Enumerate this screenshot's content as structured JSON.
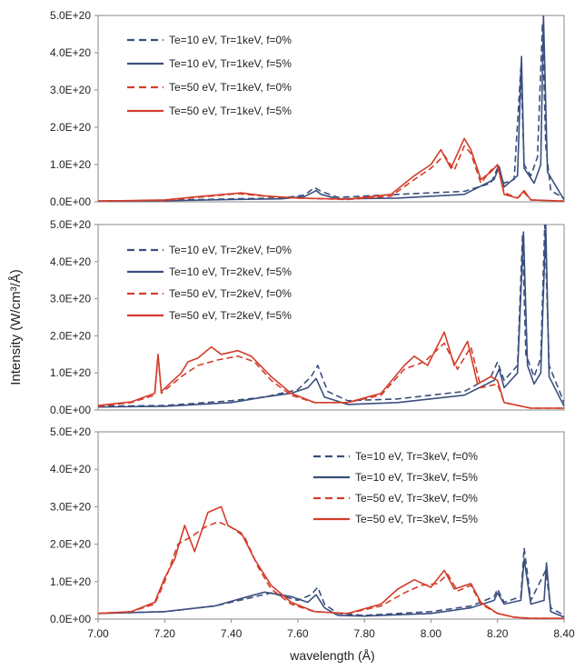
{
  "figure": {
    "ylabel": "Intensity  (W/cm³/Å)",
    "xlabel": "wavelength (Å)"
  },
  "chart_data": [
    {
      "type": "line",
      "xlabel": "",
      "ylabel": "",
      "xlim": [
        7.0,
        8.4
      ],
      "ylim": [
        0,
        5e+20
      ],
      "yticks": [
        "0.0E+00",
        "1.0E+20",
        "2.0E+20",
        "3.0E+20",
        "4.0E+20",
        "5.0E+20"
      ],
      "xticks": [],
      "grid": false,
      "legend_position": "top-left",
      "series": [
        {
          "name": "Te=10 eV, Tr=1keV, f=0%",
          "color": "#3b4f7e",
          "dash": true,
          "x": [
            7.0,
            7.2,
            7.4,
            7.55,
            7.62,
            7.65,
            7.67,
            7.72,
            7.9,
            8.1,
            8.18,
            8.2,
            8.22,
            8.25,
            8.27,
            8.28,
            8.3,
            8.32,
            8.335,
            8.345,
            8.36,
            8.4
          ],
          "y": [
            2e+18,
            4e+18,
            8e+18,
            1e+19,
            1.8e+19,
            3.8e+19,
            2.8e+19,
            1.2e+19,
            2e+19,
            2.8e+19,
            5e+19,
            9e+19,
            5e+19,
            6e+19,
            3.6e+20,
            1e+20,
            7e+19,
            1.2e+20,
            4.8e+20,
            1.5e+20,
            3e+19,
            1e+19
          ]
        },
        {
          "name": "Te=10 eV, Tr=1keV, f=5%",
          "color": "#3b4f7e",
          "dash": false,
          "x": [
            7.0,
            7.2,
            7.4,
            7.55,
            7.62,
            7.655,
            7.67,
            7.72,
            7.9,
            8.1,
            8.19,
            8.205,
            8.22,
            8.26,
            8.272,
            8.28,
            8.31,
            8.33,
            8.338,
            8.35,
            8.4
          ],
          "y": [
            2e+18,
            3e+18,
            6e+18,
            8e+18,
            1.4e+19,
            3e+19,
            2e+19,
            8e+18,
            1e+19,
            2e+19,
            6e+19,
            9.5e+19,
            4e+19,
            7e+19,
            3.9e+20,
            9e+19,
            5e+19,
            1e+20,
            5e+20,
            8e+19,
            5e+18
          ]
        },
        {
          "name": "Te=50 eV, Tr=1keV, f=0%",
          "color": "#d33d2b",
          "dash": true,
          "x": [
            7.0,
            7.2,
            7.3,
            7.42,
            7.5,
            7.6,
            7.75,
            7.88,
            7.95,
            8.0,
            8.04,
            8.07,
            8.1,
            8.12,
            8.15,
            8.18,
            8.2,
            8.22,
            8.26,
            8.28,
            8.3,
            8.4
          ],
          "y": [
            2e+18,
            4e+18,
            1.2e+19,
            2.2e+19,
            1.5e+19,
            1e+19,
            6e+18,
            1.5e+19,
            6e+19,
            9e+19,
            1.25e+20,
            8.5e+19,
            1.5e+20,
            1.3e+20,
            5e+19,
            8.5e+19,
            9.5e+19,
            2.5e+19,
            1e+19,
            2.5e+19,
            5e+18,
            2e+18
          ]
        },
        {
          "name": "Te=50 eV, Tr=1keV, f=5%",
          "color": "#d33d2b",
          "dash": false,
          "x": [
            7.0,
            7.2,
            7.3,
            7.43,
            7.5,
            7.6,
            7.75,
            7.88,
            7.95,
            8.0,
            8.03,
            8.06,
            8.1,
            8.12,
            8.15,
            8.18,
            8.2,
            8.22,
            8.26,
            8.28,
            8.3,
            8.4
          ],
          "y": [
            2e+18,
            5e+18,
            1.4e+19,
            2.4e+19,
            1.6e+19,
            1e+19,
            7e+18,
            2e+19,
            7e+19,
            1e+20,
            1.4e+20,
            9e+19,
            1.7e+20,
            1.4e+20,
            6e+19,
            8e+19,
            1e+20,
            2e+19,
            1e+19,
            3e+19,
            5e+18,
            2e+18
          ]
        }
      ]
    },
    {
      "type": "line",
      "xlabel": "",
      "ylabel": "",
      "xlim": [
        7.0,
        8.4
      ],
      "ylim": [
        0,
        5e+20
      ],
      "yticks": [
        "0.0E+00",
        "1.0E+20",
        "2.0E+20",
        "3.0E+20",
        "4.0E+20",
        "5.0E+20"
      ],
      "xticks": [],
      "grid": false,
      "legend_position": "top-left",
      "series": [
        {
          "name": "Te=10 eV, Tr=2keV, f=0%",
          "color": "#3b4f7e",
          "dash": true,
          "x": [
            7.0,
            7.2,
            7.4,
            7.5,
            7.6,
            7.64,
            7.66,
            7.69,
            7.75,
            7.9,
            8.1,
            8.18,
            8.2,
            8.22,
            8.26,
            8.275,
            8.285,
            8.31,
            8.33,
            8.342,
            8.355,
            8.4
          ],
          "y": [
            1e+19,
            1.2e+19,
            2.5e+19,
            3.5e+19,
            5.5e+19,
            9e+19,
            1.2e+20,
            5e+19,
            2.5e+19,
            3e+19,
            5e+19,
            9e+19,
            1.3e+20,
            8e+19,
            1.2e+20,
            4.7e+20,
            1.5e+20,
            9e+19,
            1.4e+20,
            5e+20,
            1.2e+20,
            2e+19
          ]
        },
        {
          "name": "Te=10 eV, Tr=2keV, f=5%",
          "color": "#3b4f7e",
          "dash": false,
          "x": [
            7.0,
            7.2,
            7.4,
            7.5,
            7.58,
            7.63,
            7.655,
            7.68,
            7.75,
            7.9,
            8.1,
            8.19,
            8.205,
            8.22,
            8.26,
            8.278,
            8.29,
            8.31,
            8.33,
            8.345,
            8.355,
            8.4
          ],
          "y": [
            8e+18,
            1e+19,
            2e+19,
            3.5e+19,
            4.5e+19,
            6e+19,
            8.5e+19,
            3.5e+19,
            1.5e+19,
            2e+19,
            4e+19,
            8e+19,
            1.1e+20,
            6e+19,
            1e+20,
            4.8e+20,
            1.2e+20,
            7e+19,
            1e+20,
            5e+20,
            9e+19,
            1e+19
          ]
        },
        {
          "name": "Te=50 eV, Tr=2keV, f=0%",
          "color": "#d33d2b",
          "dash": true,
          "x": [
            7.0,
            7.1,
            7.17,
            7.18,
            7.19,
            7.25,
            7.3,
            7.36,
            7.42,
            7.47,
            7.52,
            7.58,
            7.65,
            7.75,
            7.85,
            7.92,
            7.98,
            8.04,
            8.08,
            8.12,
            8.15,
            8.2,
            8.22,
            8.3,
            8.4
          ],
          "y": [
            1e+19,
            2e+19,
            4e+19,
            1.45e+20,
            4.5e+19,
            9e+19,
            1.2e+20,
            1.35e+20,
            1.45e+20,
            1.3e+20,
            8e+19,
            4e+19,
            2e+19,
            2e+19,
            4e+19,
            1.1e+20,
            1.3e+20,
            1.8e+20,
            1.1e+20,
            1.7e+20,
            6e+19,
            7e+19,
            2e+19,
            5e+18,
            5e+18
          ]
        },
        {
          "name": "Te=50 eV, Tr=2keV, f=5%",
          "color": "#d33d2b",
          "dash": false,
          "x": [
            7.0,
            7.1,
            7.17,
            7.18,
            7.19,
            7.25,
            7.27,
            7.3,
            7.34,
            7.37,
            7.42,
            7.46,
            7.52,
            7.58,
            7.65,
            7.75,
            7.85,
            7.92,
            7.95,
            7.99,
            8.04,
            8.07,
            8.11,
            8.14,
            8.18,
            8.2,
            8.22,
            8.3,
            8.4
          ],
          "y": [
            1.2e+19,
            2.2e+19,
            4.5e+19,
            1.5e+20,
            5e+19,
            1e+20,
            1.3e+20,
            1.4e+20,
            1.7e+20,
            1.5e+20,
            1.6e+20,
            1.45e+20,
            9e+19,
            4.5e+19,
            2e+19,
            2e+19,
            4.5e+19,
            1.2e+20,
            1.45e+20,
            1.2e+20,
            2.1e+20,
            1.2e+20,
            1.85e+20,
            7e+19,
            9e+19,
            8e+19,
            2e+19,
            5e+18,
            5e+18
          ]
        }
      ]
    },
    {
      "type": "line",
      "xlabel": "wavelength (Å)",
      "ylabel": "",
      "xlim": [
        7.0,
        8.4
      ],
      "ylim": [
        0,
        5e+20
      ],
      "yticks": [
        "0.0E+00",
        "1.0E+20",
        "2.0E+20",
        "3.0E+20",
        "4.0E+20",
        "5.0E+20"
      ],
      "xticks": [
        "7.00",
        "7.20",
        "7.40",
        "7.60",
        "7.80",
        "8.00",
        "8.20",
        "8.40"
      ],
      "grid": false,
      "legend_position": "top-right",
      "series": [
        {
          "name": "Te=10 eV, Tr=3keV, f=0%",
          "color": "#3b4f7e",
          "dash": true,
          "x": [
            7.0,
            7.2,
            7.35,
            7.45,
            7.52,
            7.6,
            7.64,
            7.66,
            7.68,
            7.72,
            7.8,
            8.0,
            8.12,
            8.19,
            8.2,
            8.22,
            8.27,
            8.28,
            8.3,
            8.345,
            8.36,
            8.4
          ],
          "y": [
            1.5e+19,
            2e+19,
            3.5e+19,
            5.5e+19,
            7e+19,
            5e+19,
            6.5e+19,
            8.5e+19,
            4e+19,
            1.5e+19,
            1e+19,
            2e+19,
            3.5e+19,
            6e+19,
            8e+19,
            4.5e+19,
            6e+19,
            1.9e+20,
            5e+19,
            1.3e+20,
            3e+19,
            1e+19
          ]
        },
        {
          "name": "Te=10 eV, Tr=3keV, f=5%",
          "color": "#3b4f7e",
          "dash": false,
          "x": [
            7.0,
            7.2,
            7.35,
            7.45,
            7.5,
            7.58,
            7.63,
            7.655,
            7.68,
            7.72,
            7.8,
            8.0,
            8.12,
            8.19,
            8.2,
            8.22,
            8.27,
            8.28,
            8.3,
            8.34,
            8.347,
            8.36,
            8.4
          ],
          "y": [
            1.5e+19,
            2e+19,
            3.5e+19,
            6e+19,
            7.2e+19,
            6e+19,
            4.5e+19,
            6.5e+19,
            3e+19,
            1e+19,
            8e+18,
            1.5e+19,
            3e+19,
            5e+19,
            7e+19,
            4e+19,
            5e+19,
            1.6e+20,
            4e+19,
            5e+19,
            1.5e+20,
            2e+19,
            5e+18
          ]
        },
        {
          "name": "Te=50 eV, Tr=3keV, f=0%",
          "color": "#d33d2b",
          "dash": true,
          "x": [
            7.0,
            7.1,
            7.17,
            7.2,
            7.24,
            7.28,
            7.32,
            7.36,
            7.4,
            7.44,
            7.48,
            7.52,
            7.58,
            7.65,
            7.75,
            7.85,
            7.92,
            7.97,
            8.02,
            8.05,
            8.08,
            8.12,
            8.15,
            8.2,
            8.25,
            8.3,
            8.4
          ],
          "y": [
            1.5e+19,
            2e+19,
            4e+19,
            1e+20,
            2e+20,
            2.2e+20,
            2.45e+20,
            2.6e+20,
            2.45e+20,
            2.2e+20,
            1.4e+20,
            8e+19,
            4e+19,
            2e+19,
            1.5e+19,
            3.5e+19,
            7e+19,
            9e+19,
            9.5e+19,
            1.2e+20,
            7.5e+19,
            9e+19,
            4e+19,
            1.5e+19,
            5e+18,
            2e+18,
            2e+18
          ]
        },
        {
          "name": "Te=50 eV, Tr=3keV, f=5%",
          "color": "#d33d2b",
          "dash": false,
          "x": [
            7.0,
            7.1,
            7.17,
            7.2,
            7.23,
            7.26,
            7.29,
            7.33,
            7.37,
            7.39,
            7.43,
            7.47,
            7.52,
            7.58,
            7.65,
            7.75,
            7.85,
            7.9,
            7.95,
            8.0,
            8.04,
            8.07,
            8.12,
            8.15,
            8.2,
            8.25,
            8.3,
            8.4
          ],
          "y": [
            1.5e+19,
            2e+19,
            4.5e+19,
            1.1e+20,
            1.6e+20,
            2.5e+20,
            1.8e+20,
            2.85e+20,
            3e+20,
            2.5e+20,
            2.3e+20,
            1.6e+20,
            9e+19,
            4.5e+19,
            2e+19,
            1.5e+19,
            4e+19,
            8e+19,
            1.05e+20,
            8.5e+19,
            1.3e+20,
            8e+19,
            9.5e+19,
            4.5e+19,
            1.5e+19,
            5e+18,
            2e+18,
            2e+18
          ]
        }
      ]
    }
  ]
}
